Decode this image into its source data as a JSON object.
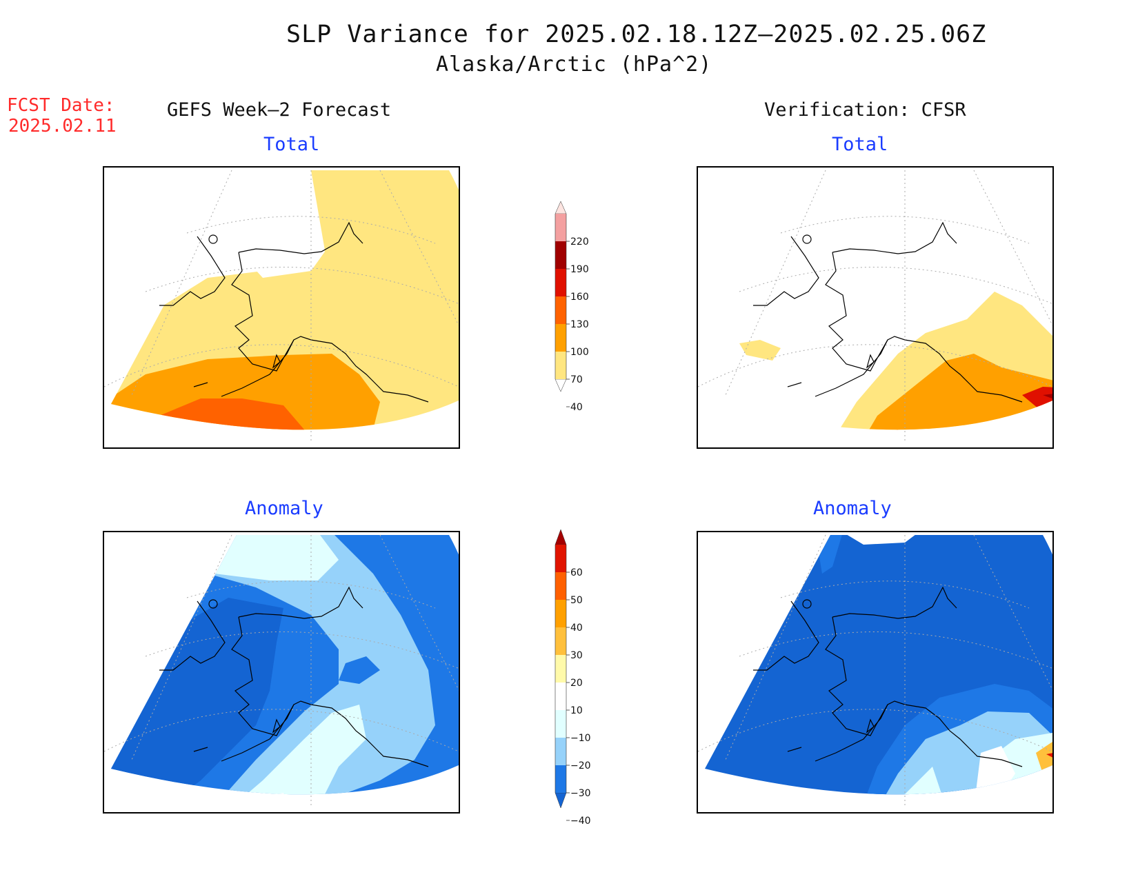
{
  "title": "SLP Variance for 2025.02.18.12Z–2025.02.25.06Z",
  "subtitle": "Alaska/Arctic (hPa^2)",
  "forecast_date": {
    "label": "FCST Date:",
    "value": "2025.02.11"
  },
  "columns": {
    "left": "GEFS Week–2 Forecast",
    "right": "Verification: CFSR"
  },
  "panels": {
    "fc_total": {
      "title": "Total"
    },
    "fc_anomaly": {
      "title": "Anomaly"
    },
    "ver_total": {
      "title": "Total"
    },
    "ver_anomaly": {
      "title": "Anomaly"
    }
  },
  "colorbars": {
    "total": {
      "labels": [
        "220",
        "190",
        "160",
        "130",
        "100",
        "70",
        "40"
      ],
      "bins": [
        {
          "range": "<40",
          "color": "#ffffff"
        },
        {
          "range": "40-70",
          "color": "#ffe680"
        },
        {
          "range": "70-100",
          "color": "#ffa000"
        },
        {
          "range": "100-130",
          "color": "#ff6200"
        },
        {
          "range": "130-160",
          "color": "#e01000"
        },
        {
          "range": "160-190",
          "color": "#a00000"
        },
        {
          "range": "190-220",
          "color": "#f4a0a0"
        },
        {
          "range": ">220",
          "color": "#fde4e0"
        }
      ]
    },
    "anomaly": {
      "labels": [
        "60",
        "50",
        "40",
        "30",
        "20",
        "10",
        "−10",
        "−20",
        "−30",
        "−40"
      ],
      "bins": [
        {
          "range": "<-40",
          "color": "#1464d2"
        },
        {
          "range": "-40--30",
          "color": "#1e78e6"
        },
        {
          "range": "-30--20",
          "color": "#96d2fa"
        },
        {
          "range": "-20--10",
          "color": "#e1ffff"
        },
        {
          "range": "-10-10",
          "color": "#ffffff"
        },
        {
          "range": "10-20",
          "color": "#fffaaa"
        },
        {
          "range": "20-30",
          "color": "#ffc03c"
        },
        {
          "range": "30-40",
          "color": "#ffa000"
        },
        {
          "range": "40-50",
          "color": "#ff6000"
        },
        {
          "range": "50-60",
          "color": "#e11400"
        },
        {
          "range": ">60",
          "color": "#a50000"
        }
      ]
    }
  }
}
